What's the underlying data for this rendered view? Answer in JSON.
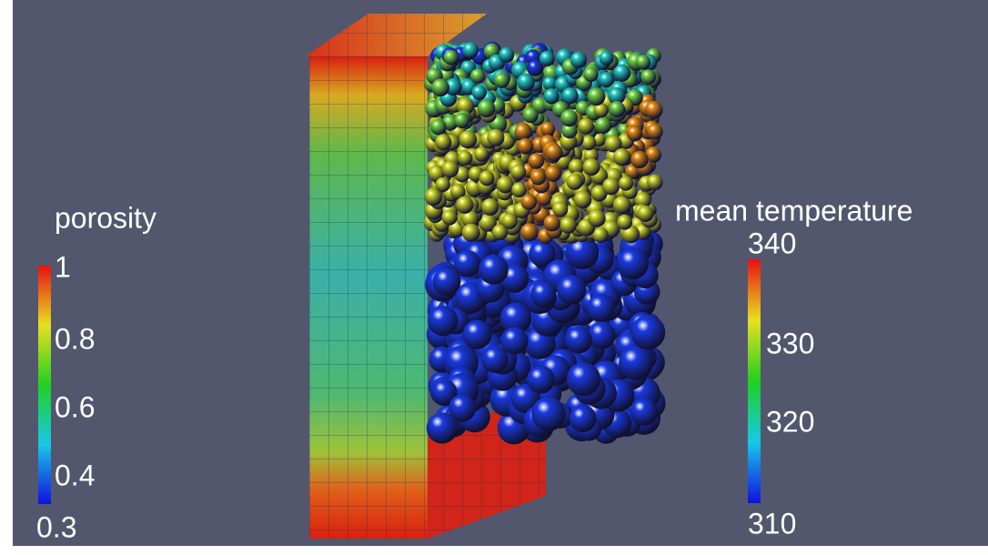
{
  "porosity_legend": {
    "title": "porosity",
    "ticks": [
      "1",
      "0.8",
      "0.6",
      "0.4",
      "0.3"
    ]
  },
  "temperature_legend": {
    "title": "mean temperature",
    "ticks": [
      "340",
      "330",
      "320",
      "310"
    ]
  }
}
